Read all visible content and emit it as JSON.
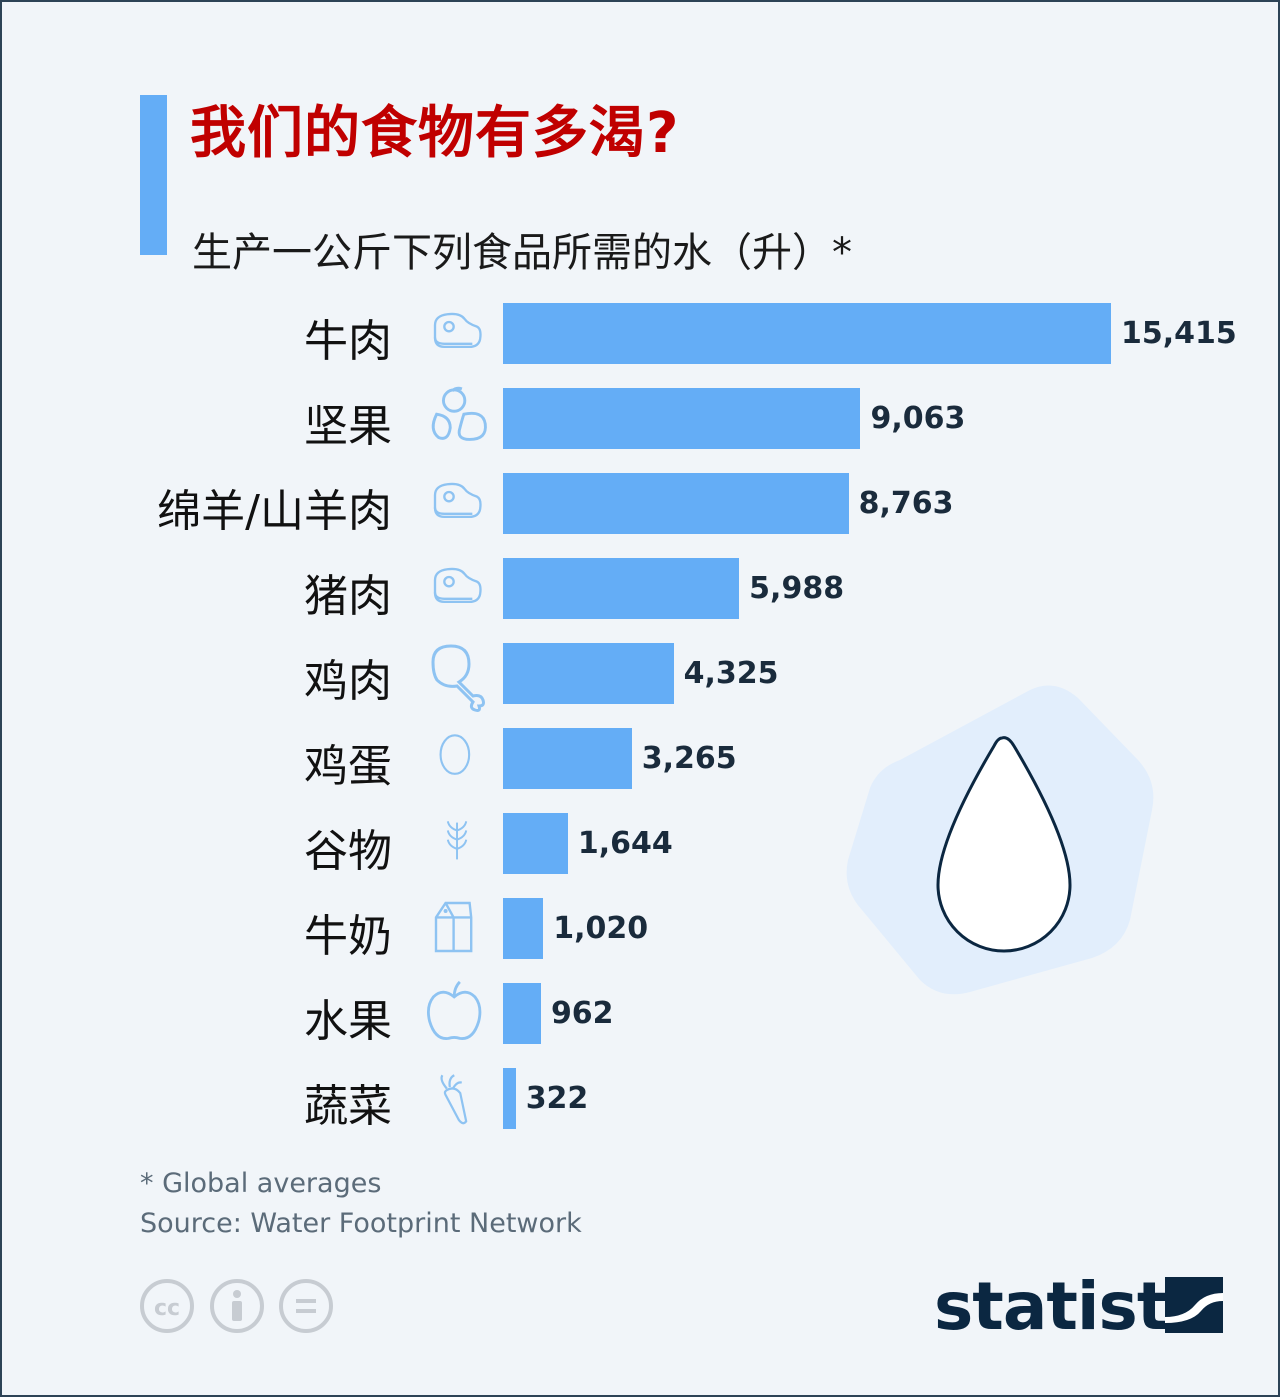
{
  "title": "我们的食物有多渴?",
  "subtitle": "生产一公斤下列食品所需的水（升）*",
  "chart_data": {
    "type": "bar",
    "orientation": "horizontal",
    "title": "我们的食物有多渴?",
    "subtitle": "生产一公斤下列食品所需的水（升）*",
    "categories": [
      "牛肉",
      "坚果",
      "绵羊/山羊肉",
      "猪肉",
      "鸡肉",
      "鸡蛋",
      "谷物",
      "牛奶",
      "水果",
      "蔬菜"
    ],
    "values": [
      15415,
      9063,
      8763,
      5988,
      4325,
      3265,
      1644,
      1020,
      962,
      322
    ],
    "value_labels": [
      "15,415",
      "9,063",
      "8,763",
      "5,988",
      "4,325",
      "3,265",
      "1,644",
      "1,020",
      "962",
      "322"
    ],
    "icons": [
      "steak-icon",
      "nuts-icon",
      "steak-icon",
      "steak-icon",
      "drumstick-icon",
      "egg-icon",
      "wheat-icon",
      "milk-carton-icon",
      "apple-icon",
      "carrot-icon"
    ],
    "xlim": [
      0,
      15415
    ],
    "color": "#64adf6"
  },
  "footnote": "* Global averages",
  "source": "Source: Water Footprint Network",
  "brand": "statista",
  "colors": {
    "title": "#c00000",
    "bar": "#64adf6",
    "icon": "#8ec3f2",
    "drop_bg": "#e2eefc"
  }
}
